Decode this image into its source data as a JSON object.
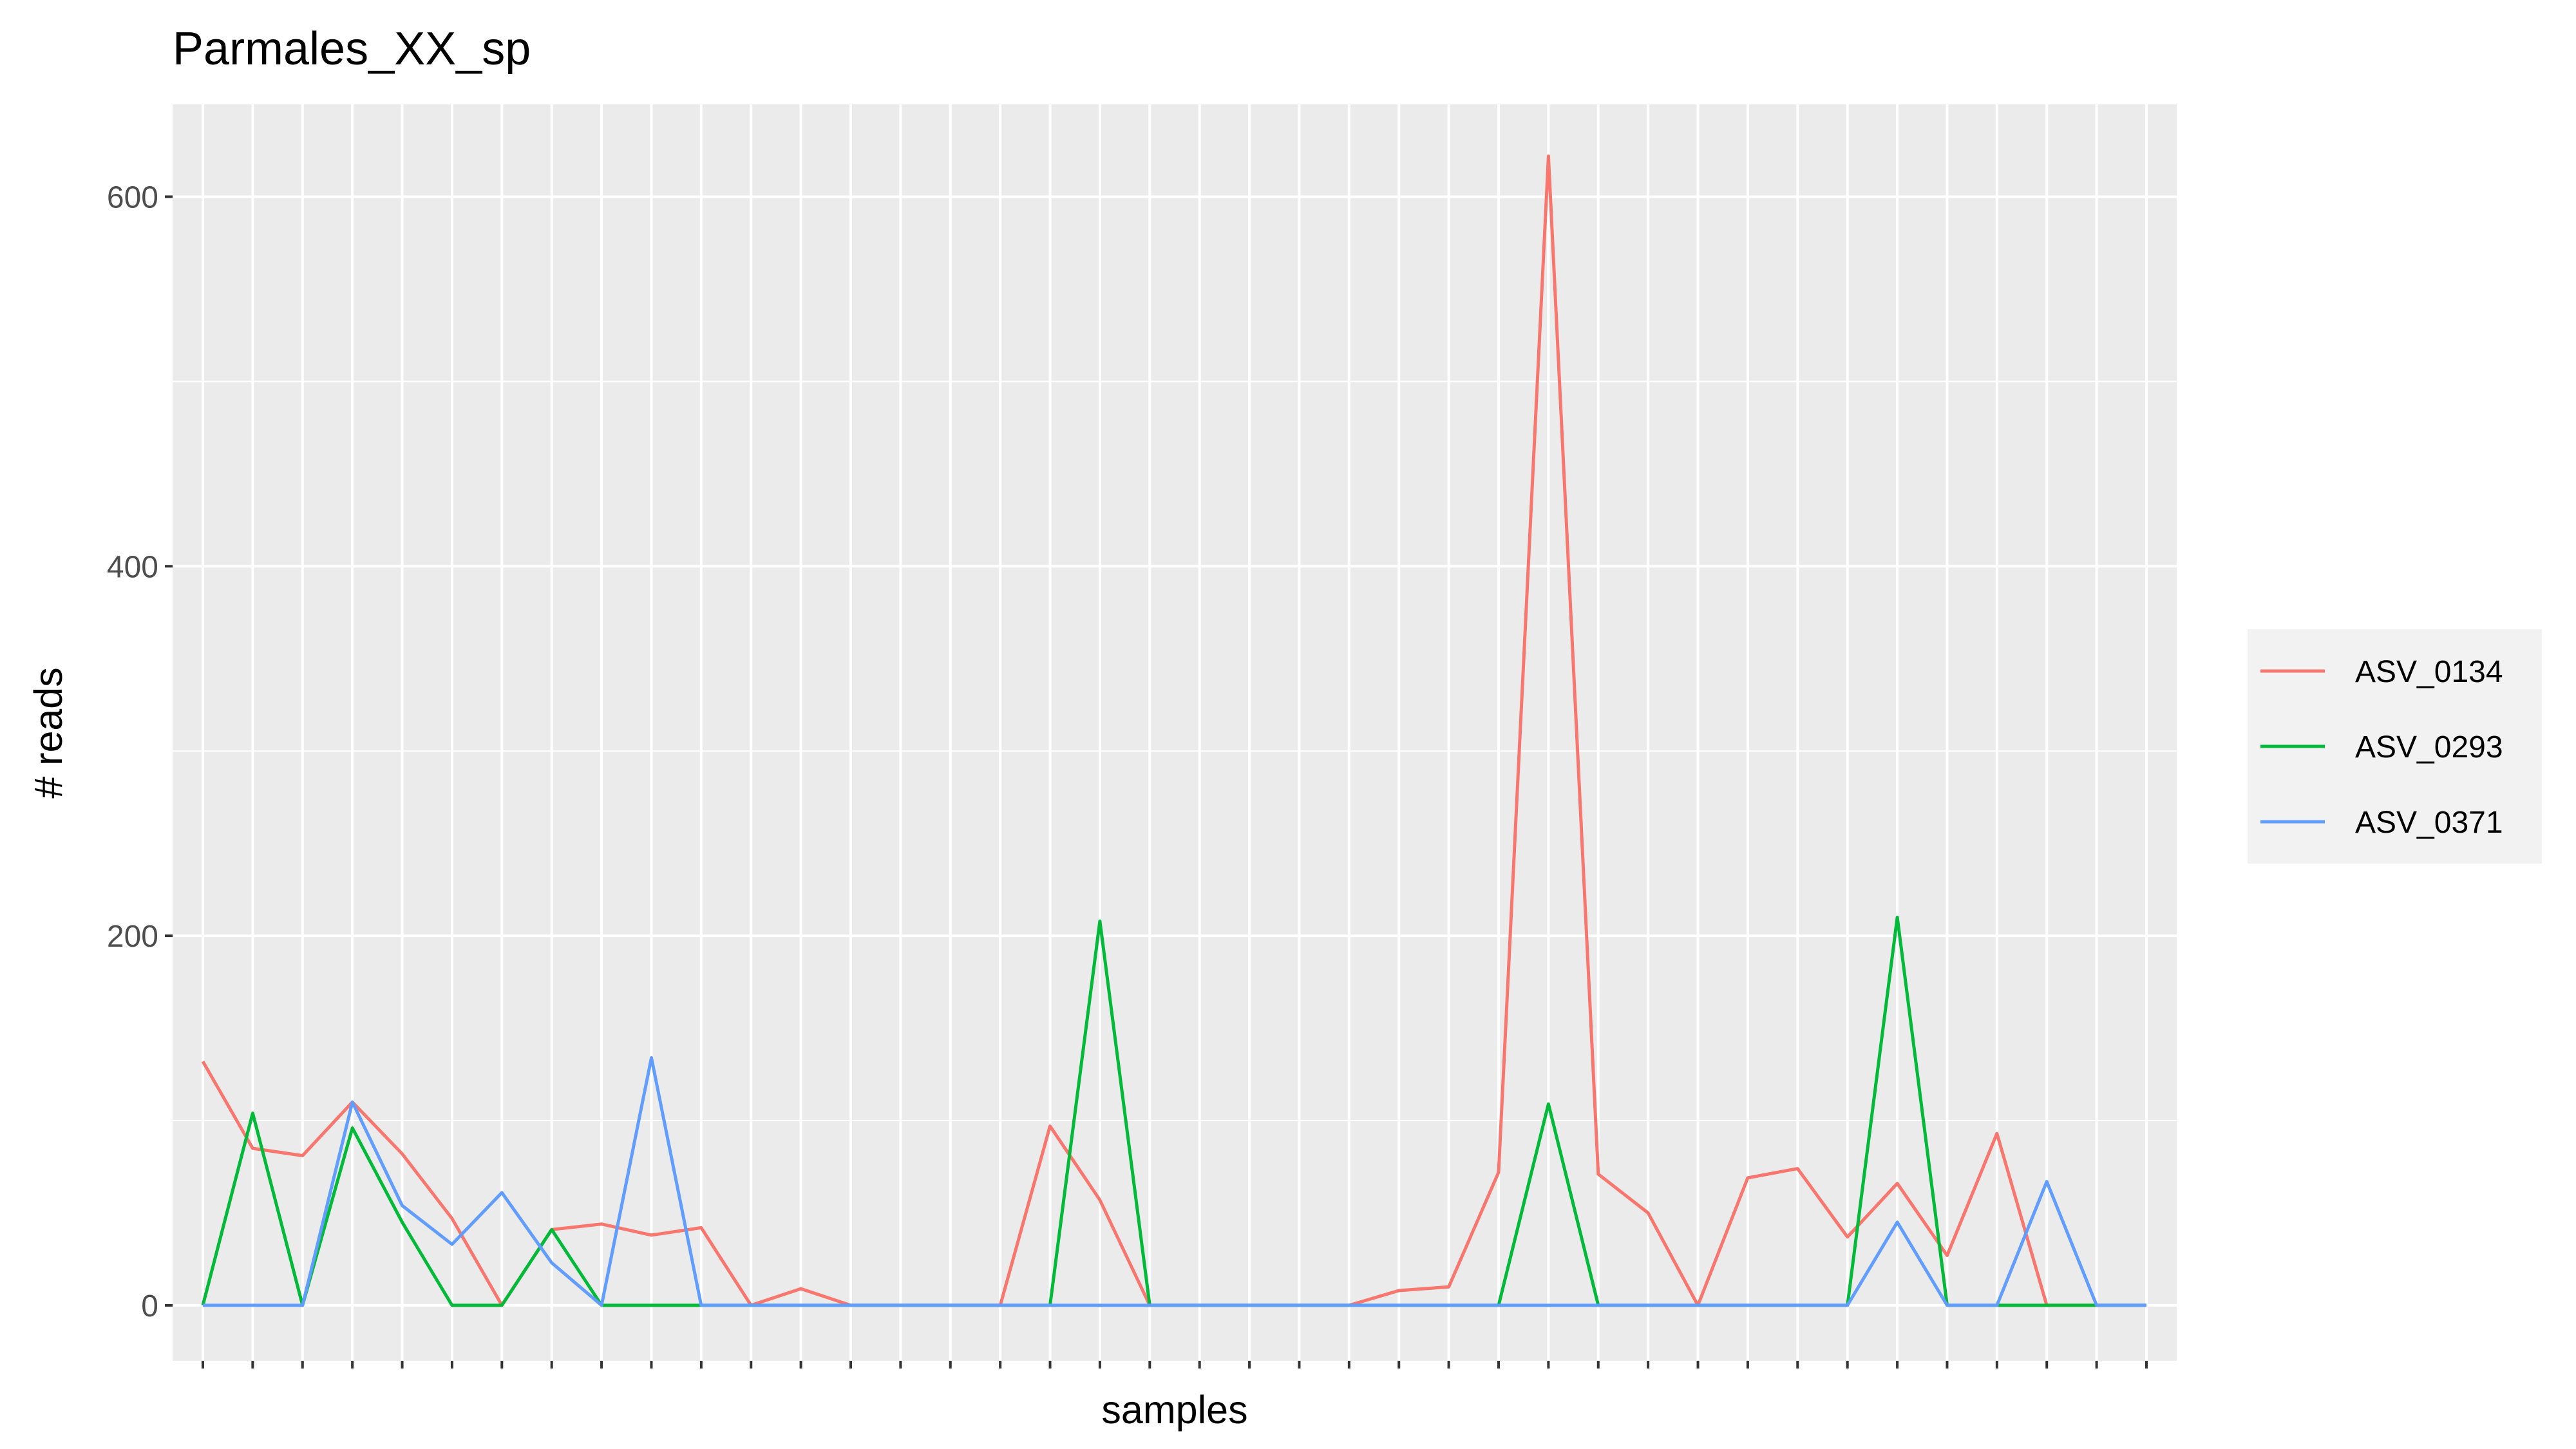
{
  "chart_data": {
    "type": "line",
    "title": "Parmales_XX_sp",
    "xlabel": "samples",
    "ylabel": "# reads",
    "ylim": [
      -30,
      650
    ],
    "yticks": [
      0,
      200,
      400,
      600
    ],
    "x_count": 40,
    "x_tick_labels": "none",
    "grid": true,
    "legend_position": "right",
    "series": [
      {
        "name": "ASV_0134",
        "color": "#F8766D",
        "values": [
          132,
          85,
          81,
          110,
          82,
          47,
          0,
          41,
          44,
          38,
          42,
          0,
          9,
          0,
          0,
          0,
          0,
          97,
          57,
          0,
          0,
          0,
          0,
          0,
          8,
          10,
          72,
          622,
          71,
          50,
          0,
          69,
          74,
          37,
          66,
          27,
          93,
          0,
          0,
          0
        ]
      },
      {
        "name": "ASV_0293",
        "color": "#00BA38",
        "values": [
          0,
          104,
          0,
          96,
          45,
          0,
          0,
          41,
          0,
          0,
          0,
          0,
          0,
          0,
          0,
          0,
          0,
          0,
          208,
          0,
          0,
          0,
          0,
          0,
          0,
          0,
          0,
          109,
          0,
          0,
          0,
          0,
          0,
          0,
          210,
          0,
          0,
          0,
          0,
          0
        ]
      },
      {
        "name": "ASV_0371",
        "color": "#619CFF",
        "values": [
          0,
          0,
          0,
          110,
          54,
          33,
          61,
          23,
          0,
          134,
          0,
          0,
          0,
          0,
          0,
          0,
          0,
          0,
          0,
          0,
          0,
          0,
          0,
          0,
          0,
          0,
          0,
          0,
          0,
          0,
          0,
          0,
          0,
          0,
          45,
          0,
          0,
          67,
          0,
          0
        ]
      }
    ]
  }
}
